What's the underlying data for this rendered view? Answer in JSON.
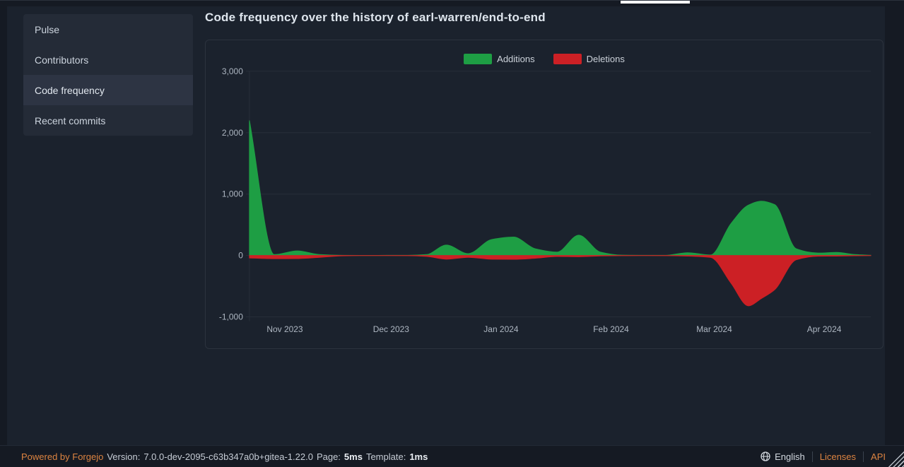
{
  "sidebar": {
    "items": [
      {
        "label": "Pulse"
      },
      {
        "label": "Contributors"
      },
      {
        "label": "Code frequency",
        "active": true
      },
      {
        "label": "Recent commits"
      }
    ]
  },
  "header": {
    "title": "Code frequency over the history of earl-warren/end-to-end"
  },
  "chart_data": {
    "type": "area",
    "title": "Code frequency over the history of earl-warren/end-to-end",
    "legend": [
      "Additions",
      "Deletions"
    ],
    "legend_position": "top-center",
    "grid": true,
    "colors": {
      "additions": "#1e9e44",
      "deletions": "#cc2025"
    },
    "ylim": [
      -1000,
      3000
    ],
    "y_ticks": [
      {
        "label": "3,000",
        "value": 3000
      },
      {
        "label": "2,000",
        "value": 2000
      },
      {
        "label": "1,000",
        "value": 1000
      },
      {
        "label": "0",
        "value": 0
      },
      {
        "label": "-1,000",
        "value": -1000
      }
    ],
    "x_ticks": [
      {
        "label": "Nov 2023",
        "t": 0.057
      },
      {
        "label": "Dec 2023",
        "t": 0.228
      },
      {
        "label": "Jan 2024",
        "t": 0.405
      },
      {
        "label": "Feb 2024",
        "t": 0.582
      },
      {
        "label": "Mar 2024",
        "t": 0.748
      },
      {
        "label": "Apr 2024",
        "t": 0.925
      }
    ],
    "points": [
      {
        "t": 0.0,
        "additions": 2200,
        "deletions": -40
      },
      {
        "t": 0.04,
        "additions": 15,
        "deletions": -52
      },
      {
        "t": 0.077,
        "additions": 75,
        "deletions": -50
      },
      {
        "t": 0.113,
        "additions": 15,
        "deletions": -30
      },
      {
        "t": 0.15,
        "additions": 3,
        "deletions": -6
      },
      {
        "t": 0.185,
        "additions": 1,
        "deletions": -1
      },
      {
        "t": 0.22,
        "additions": 2,
        "deletions": -2
      },
      {
        "t": 0.255,
        "additions": 3,
        "deletions": -3
      },
      {
        "t": 0.285,
        "additions": 15,
        "deletions": -15
      },
      {
        "t": 0.317,
        "additions": 170,
        "deletions": -60
      },
      {
        "t": 0.352,
        "additions": 30,
        "deletions": -30
      },
      {
        "t": 0.39,
        "additions": 260,
        "deletions": -60
      },
      {
        "t": 0.425,
        "additions": 300,
        "deletions": -62
      },
      {
        "t": 0.46,
        "additions": 110,
        "deletions": -45
      },
      {
        "t": 0.495,
        "additions": 55,
        "deletions": -16
      },
      {
        "t": 0.53,
        "additions": 330,
        "deletions": -20
      },
      {
        "t": 0.565,
        "additions": 55,
        "deletions": -8
      },
      {
        "t": 0.6,
        "additions": 5,
        "deletions": -3
      },
      {
        "t": 0.635,
        "additions": 2,
        "deletions": -2
      },
      {
        "t": 0.67,
        "additions": 3,
        "deletions": -3
      },
      {
        "t": 0.705,
        "additions": 45,
        "deletions": -10
      },
      {
        "t": 0.742,
        "additions": 8,
        "deletions": -30
      },
      {
        "t": 0.775,
        "additions": 520,
        "deletions": -450
      },
      {
        "t": 0.803,
        "additions": 820,
        "deletions": -820
      },
      {
        "t": 0.824,
        "additions": 885,
        "deletions": -700
      },
      {
        "t": 0.845,
        "additions": 830,
        "deletions": -560
      },
      {
        "t": 0.88,
        "additions": 110,
        "deletions": -70
      },
      {
        "t": 0.915,
        "additions": 40,
        "deletions": -12
      },
      {
        "t": 0.945,
        "additions": 50,
        "deletions": -10
      },
      {
        "t": 0.975,
        "additions": 15,
        "deletions": -5
      },
      {
        "t": 1.0,
        "additions": 4,
        "deletions": -2
      }
    ]
  },
  "footer": {
    "powered_by": "Powered by Forgejo",
    "version_label": "Version:",
    "version_value": "7.0.0-dev-2095-c63b347a0b+gitea-1.22.0",
    "page_label": "Page:",
    "page_value": "5ms",
    "template_label": "Template:",
    "template_value": "1ms",
    "language": "English",
    "licenses": "Licenses",
    "api": "API"
  }
}
